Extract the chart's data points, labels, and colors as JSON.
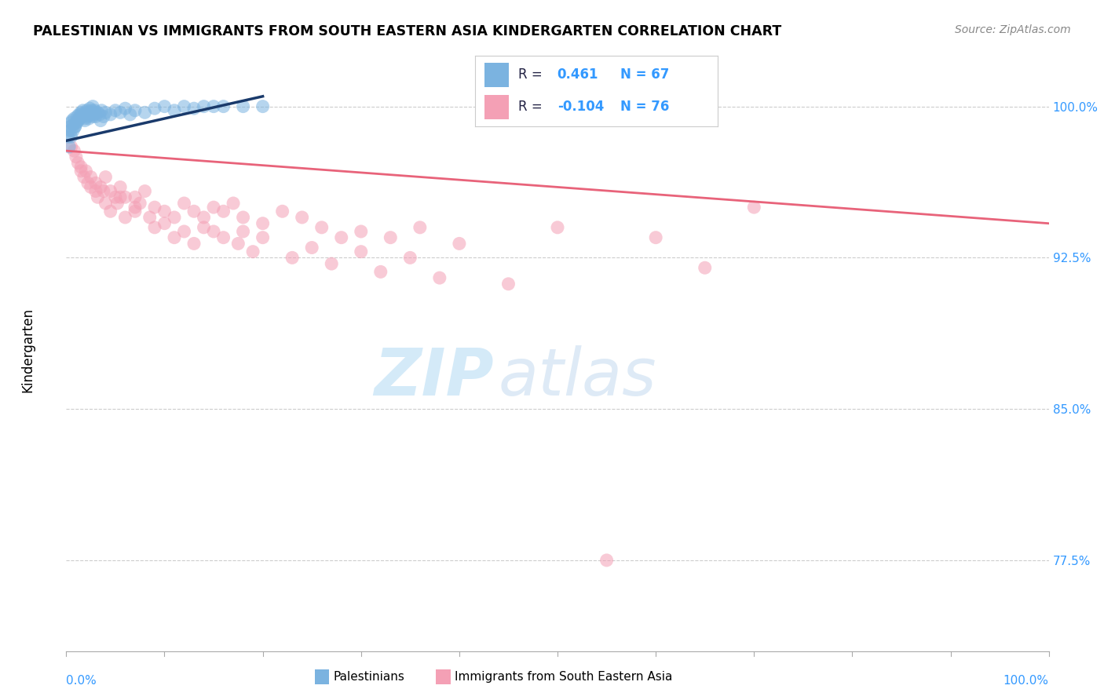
{
  "title": "PALESTINIAN VS IMMIGRANTS FROM SOUTH EASTERN ASIA KINDERGARTEN CORRELATION CHART",
  "source": "Source: ZipAtlas.com",
  "ylabel": "Kindergarten",
  "yticks": [
    77.5,
    85.0,
    92.5,
    100.0
  ],
  "ytick_labels": [
    "77.5%",
    "85.0%",
    "92.5%",
    "100.0%"
  ],
  "xlim": [
    0.0,
    100.0
  ],
  "ylim": [
    73.0,
    102.5
  ],
  "blue_color": "#7BB3E0",
  "pink_color": "#F4A0B5",
  "blue_line_color": "#1A3A6B",
  "pink_line_color": "#E8637A",
  "blue_x": [
    0.2,
    0.3,
    0.4,
    0.5,
    0.5,
    0.6,
    0.7,
    0.8,
    0.9,
    1.0,
    1.1,
    1.2,
    1.3,
    1.4,
    1.5,
    1.6,
    1.7,
    1.8,
    1.9,
    2.0,
    2.1,
    2.2,
    2.3,
    2.4,
    2.5,
    2.6,
    2.7,
    2.8,
    2.9,
    3.0,
    3.2,
    3.4,
    3.6,
    3.8,
    4.0,
    4.5,
    5.0,
    5.5,
    6.0,
    6.5,
    7.0,
    8.0,
    9.0,
    10.0,
    11.0,
    12.0,
    13.0,
    14.0,
    15.0,
    16.0,
    18.0,
    20.0,
    0.3,
    0.5,
    0.7,
    0.9,
    1.1,
    1.3,
    1.5,
    1.7,
    1.9,
    2.1,
    2.3,
    2.5,
    2.7,
    2.9,
    3.5
  ],
  "blue_y": [
    98.5,
    98.8,
    99.0,
    99.2,
    98.8,
    99.3,
    99.1,
    99.4,
    99.0,
    99.2,
    99.5,
    99.3,
    99.6,
    99.4,
    99.7,
    99.5,
    99.8,
    99.6,
    99.4,
    99.7,
    99.8,
    99.5,
    99.6,
    99.9,
    99.7,
    99.8,
    100.0,
    99.6,
    99.8,
    99.5,
    99.7,
    99.6,
    99.8,
    99.5,
    99.7,
    99.6,
    99.8,
    99.7,
    99.9,
    99.6,
    99.8,
    99.7,
    99.9,
    100.0,
    99.8,
    100.0,
    99.9,
    100.0,
    100.0,
    100.0,
    100.0,
    100.0,
    98.0,
    98.5,
    98.8,
    99.0,
    99.2,
    99.4,
    99.6,
    99.5,
    99.3,
    99.6,
    99.4,
    99.6,
    99.5,
    99.7,
    99.3
  ],
  "pink_x": [
    0.5,
    1.0,
    1.5,
    2.0,
    2.5,
    3.0,
    3.5,
    4.0,
    4.5,
    5.0,
    5.5,
    6.0,
    7.0,
    7.5,
    8.0,
    9.0,
    10.0,
    11.0,
    12.0,
    13.0,
    14.0,
    15.0,
    16.0,
    17.0,
    18.0,
    20.0,
    22.0,
    24.0,
    26.0,
    28.0,
    30.0,
    33.0,
    36.0,
    40.0,
    50.0,
    60.0,
    70.0,
    1.2,
    1.8,
    2.5,
    3.2,
    3.8,
    4.5,
    5.2,
    6.0,
    7.0,
    8.5,
    10.0,
    12.0,
    14.0,
    16.0,
    18.0,
    20.0,
    25.0,
    30.0,
    35.0,
    0.8,
    1.5,
    2.2,
    3.0,
    4.0,
    5.5,
    7.0,
    9.0,
    11.0,
    13.0,
    15.0,
    17.5,
    19.0,
    23.0,
    27.0,
    32.0,
    38.0,
    45.0,
    55.0,
    65.0
  ],
  "pink_y": [
    98.0,
    97.5,
    97.0,
    96.8,
    96.5,
    96.2,
    96.0,
    96.5,
    95.8,
    95.5,
    96.0,
    95.5,
    95.0,
    95.2,
    95.8,
    95.0,
    94.8,
    94.5,
    95.2,
    94.8,
    94.5,
    95.0,
    94.8,
    95.2,
    94.5,
    94.2,
    94.8,
    94.5,
    94.0,
    93.5,
    93.8,
    93.5,
    94.0,
    93.2,
    94.0,
    93.5,
    95.0,
    97.2,
    96.5,
    96.0,
    95.5,
    95.8,
    94.8,
    95.2,
    94.5,
    95.5,
    94.5,
    94.2,
    93.8,
    94.0,
    93.5,
    93.8,
    93.5,
    93.0,
    92.8,
    92.5,
    97.8,
    96.8,
    96.2,
    95.8,
    95.2,
    95.5,
    94.8,
    94.0,
    93.5,
    93.2,
    93.8,
    93.2,
    92.8,
    92.5,
    92.2,
    91.8,
    91.5,
    91.2,
    77.5,
    92.0
  ],
  "blue_trend_x0": 0.0,
  "blue_trend_y0": 98.3,
  "blue_trend_x1": 20.0,
  "blue_trend_y1": 100.5,
  "pink_trend_x0": 0.0,
  "pink_trend_y0": 97.8,
  "pink_trend_x1": 100.0,
  "pink_trend_y1": 94.2
}
